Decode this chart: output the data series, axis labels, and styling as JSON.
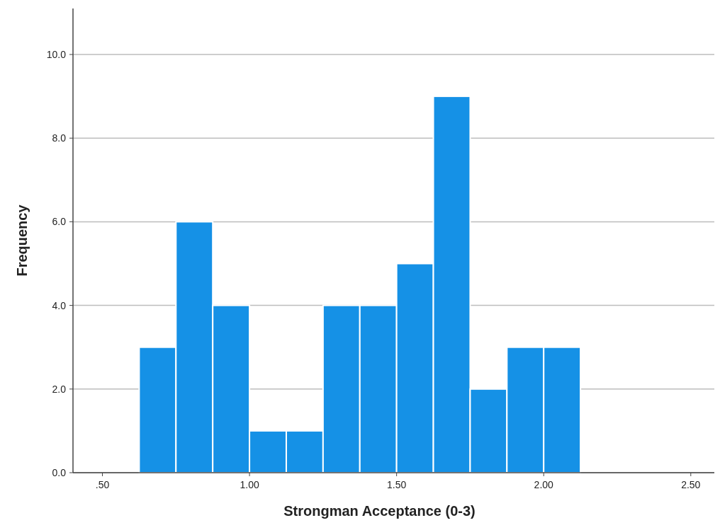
{
  "chart_data": {
    "type": "histogram",
    "xlabel": "Strongman Acceptance (0-3)",
    "ylabel": "Frequency",
    "bins": [
      0.625,
      0.75,
      0.875,
      1.0,
      1.125,
      1.25,
      1.375,
      1.5,
      1.625,
      1.75,
      1.875,
      2.0,
      2.125
    ],
    "values": [
      3,
      6,
      4,
      1,
      1,
      4,
      4,
      5,
      9,
      2,
      3,
      3
    ],
    "color": "#1591e6",
    "xlim": [
      0.4,
      2.58
    ],
    "ylim": [
      0,
      11.1
    ],
    "xticks": [
      {
        "value": 0.5,
        "label": ".50"
      },
      {
        "value": 1,
        "label": "1.00"
      },
      {
        "value": 1.5,
        "label": "1.50"
      },
      {
        "value": 2,
        "label": "2.00"
      },
      {
        "value": 2.5,
        "label": "2.50"
      }
    ],
    "yticks": [
      {
        "value": 0,
        "label": "0.0"
      },
      {
        "value": 2,
        "label": "2.0"
      },
      {
        "value": 4,
        "label": "4.0"
      },
      {
        "value": 6,
        "label": "6.0"
      },
      {
        "value": 8,
        "label": "8.0"
      },
      {
        "value": 10,
        "label": "10.0"
      }
    ],
    "grid": "y"
  }
}
